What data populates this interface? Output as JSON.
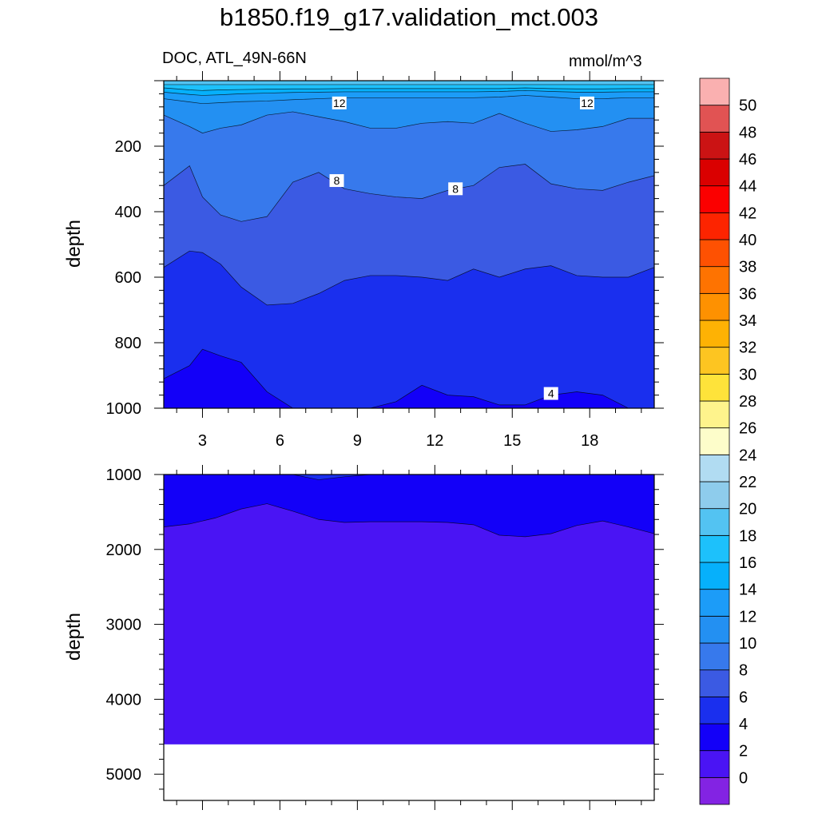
{
  "title": "b1850.f19_g17.validation_mct.003",
  "subtitle": "DOC, ATL_49N-66N",
  "units": "mmol/m^3",
  "ylabel": "depth",
  "chart_data": [
    {
      "type": "contour",
      "panel": "upper",
      "title": "DOC, ATL_49N-66N",
      "units": "mmol/m^3",
      "ylabel": "depth",
      "xlim": [
        1.5,
        20.5
      ],
      "ylim": [
        1000,
        0
      ],
      "x_ticks": [
        3,
        6,
        9,
        12,
        15,
        18
      ],
      "y_ticks": [
        200,
        400,
        600,
        800,
        1000
      ],
      "x": [
        1.5,
        2.5,
        3.0,
        3.7,
        4.5,
        5.5,
        6.5,
        7.5,
        8.5,
        9.5,
        10.5,
        11.5,
        12.5,
        13.5,
        14.5,
        15.5,
        16.5,
        17.5,
        18.5,
        19.5,
        20.5
      ],
      "contours": [
        {
          "level": 18,
          "depth": [
            12,
            12,
            12,
            12,
            12,
            12,
            12,
            12,
            12,
            12,
            12,
            12,
            12,
            12,
            12,
            12,
            12,
            12,
            12,
            12,
            12
          ]
        },
        {
          "level": 16,
          "depth": [
            22,
            28,
            30,
            28,
            27,
            26,
            25,
            25,
            24,
            24,
            24,
            24,
            24,
            24,
            24,
            22,
            24,
            25,
            25,
            24,
            24
          ]
        },
        {
          "level": 14,
          "depth": [
            35,
            42,
            45,
            43,
            40,
            38,
            36,
            35,
            34,
            34,
            34,
            34,
            34,
            34,
            33,
            30,
            33,
            35,
            35,
            34,
            34
          ]
        },
        {
          "level": 12,
          "depth": [
            55,
            65,
            70,
            67,
            64,
            62,
            58,
            55,
            52,
            52,
            52,
            52,
            52,
            52,
            50,
            45,
            50,
            55,
            55,
            52,
            52
          ]
        },
        {
          "level": 10,
          "depth": [
            105,
            140,
            160,
            145,
            135,
            105,
            95,
            110,
            125,
            145,
            145,
            130,
            125,
            130,
            100,
            130,
            155,
            150,
            140,
            115,
            115
          ]
        },
        {
          "level": 8,
          "depth": [
            320,
            260,
            355,
            410,
            430,
            415,
            310,
            280,
            330,
            345,
            355,
            360,
            335,
            320,
            265,
            255,
            315,
            330,
            335,
            310,
            290
          ]
        },
        {
          "level": 6,
          "depth": [
            570,
            520,
            525,
            560,
            630,
            685,
            680,
            650,
            610,
            595,
            595,
            600,
            610,
            575,
            600,
            575,
            565,
            595,
            600,
            600,
            570
          ]
        },
        {
          "level": 4,
          "depth": [
            910,
            870,
            820,
            840,
            860,
            950,
            1000,
            1000,
            1000,
            1000,
            980,
            930,
            960,
            965,
            990,
            990,
            960,
            950,
            960,
            1000,
            1000
          ]
        }
      ],
      "contour_labels": [
        {
          "value": "12",
          "x": 8.3,
          "depth": 68
        },
        {
          "value": "12",
          "x": 17.9,
          "depth": 68
        },
        {
          "value": "8",
          "x": 8.2,
          "depth": 305
        },
        {
          "value": "8",
          "x": 12.8,
          "depth": 330
        },
        {
          "value": "4",
          "x": 16.5,
          "depth": 955
        }
      ]
    },
    {
      "type": "contour",
      "panel": "lower",
      "ylabel": "depth",
      "xlim": [
        1.5,
        20.5
      ],
      "ylim": [
        5350,
        1000
      ],
      "y_ticks": [
        1000,
        2000,
        3000,
        4000,
        5000
      ],
      "x": [
        1.5,
        2.5,
        3.5,
        4.5,
        5.5,
        6.5,
        7.5,
        8.5,
        9.5,
        10.5,
        11.5,
        12.5,
        13.5,
        14.5,
        15.5,
        16.5,
        17.5,
        18.5,
        19.5,
        20.5
      ],
      "contours": [
        {
          "level": 4,
          "depth": [
            1000,
            1000,
            1000,
            1000,
            1000,
            1000,
            1070,
            1030,
            1000,
            1000,
            1000,
            1000,
            1000,
            1000,
            1000,
            1000,
            1000,
            1000,
            1000,
            1000
          ]
        },
        {
          "level": 2,
          "depth": [
            1700,
            1660,
            1580,
            1460,
            1390,
            1490,
            1600,
            1640,
            1630,
            1630,
            1630,
            1640,
            1670,
            1810,
            1830,
            1790,
            1680,
            1620,
            1700,
            1790
          ]
        }
      ],
      "bottom_depth": 4600
    }
  ],
  "colorbar": {
    "levels": [
      "0",
      "2",
      "4",
      "6",
      "8",
      "10",
      "12",
      "14",
      "16",
      "18",
      "20",
      "22",
      "24",
      "26",
      "28",
      "30",
      "32",
      "34",
      "36",
      "38",
      "40",
      "42",
      "44",
      "46",
      "48",
      "50"
    ],
    "colors": [
      "#8323E3",
      "#4A14F4",
      "#1300F8",
      "#1A2FEE",
      "#3B5AE3",
      "#3779EC",
      "#2390F2",
      "#1C9CF8",
      "#06B0FB",
      "#1DC1FB",
      "#53C3F2",
      "#8ECCEC",
      "#B1DCF2",
      "#FDFDCA",
      "#FEF38C",
      "#FEE33A",
      "#FDC521",
      "#FEB204",
      "#FE9101",
      "#FE7301",
      "#FE5102",
      "#FD2400",
      "#FB0000",
      "#DA0000",
      "#CB1314",
      "#E15353",
      "#FAB0B0"
    ]
  }
}
